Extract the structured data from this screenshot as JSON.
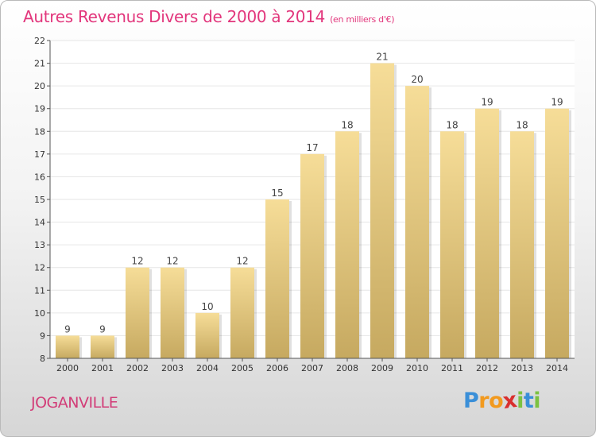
{
  "header": {
    "title": "Autres Revenus Divers de 2000 à 2014",
    "unit": "(en milliers d'€)"
  },
  "footer": {
    "city": "JOGANVILLE",
    "brand_letters": [
      "P",
      "r",
      "o",
      "x",
      "i",
      "t",
      "i"
    ],
    "brand_colors": [
      "#3a8fd8",
      "#f29a1f",
      "#f29a1f",
      "#d9302f",
      "#7cc242",
      "#3a8fd8",
      "#7cc242"
    ]
  },
  "colors": {
    "title": "#e2367c",
    "city": "#d23d78",
    "bar_top": "#f6dd98",
    "bar_bottom": "#c6a960",
    "grid": "#e6e6e6",
    "axis": "#555555"
  },
  "chart_data": {
    "type": "bar",
    "title": "Autres Revenus Divers de 2000 à 2014",
    "subtitle": "(en milliers d'€)",
    "categories": [
      "2000",
      "2001",
      "2002",
      "2003",
      "2004",
      "2005",
      "2006",
      "2007",
      "2008",
      "2009",
      "2010",
      "2011",
      "2012",
      "2013",
      "2014"
    ],
    "values": [
      9,
      9,
      12,
      12,
      10,
      12,
      15,
      17,
      18,
      21,
      20,
      18,
      19,
      18,
      19
    ],
    "ylim": [
      8,
      22
    ],
    "yticks": [
      8,
      9,
      10,
      11,
      12,
      13,
      14,
      15,
      16,
      17,
      18,
      19,
      20,
      21,
      22
    ],
    "xlabel": "",
    "ylabel": "",
    "grid": true,
    "legend": "none"
  }
}
